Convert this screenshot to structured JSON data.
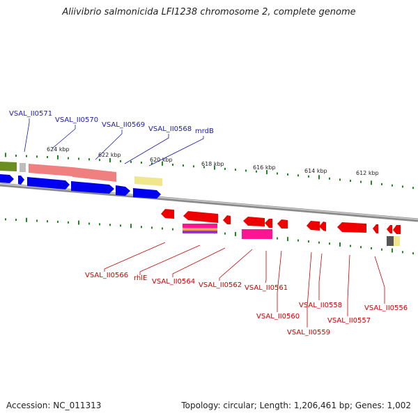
{
  "title": "Aliivibrio salmonicida LFI1238 chromosome 2, complete genome",
  "accession": "Accession: NC_011313",
  "summary": "Topology: circular; Length: 1,206,461 bp; Genes: 1,002",
  "ticks": [
    {
      "label": "624 kbp"
    },
    {
      "label": "622 kbp"
    },
    {
      "label": "620 kbp"
    },
    {
      "label": "618 kbp"
    },
    {
      "label": "616 kbp"
    },
    {
      "label": "614 kbp"
    },
    {
      "label": "612 kbp"
    }
  ],
  "top_genes": [
    {
      "label": "VSAL_II0571"
    },
    {
      "label": "VSAL_II0570"
    },
    {
      "label": "VSAL_II0569"
    },
    {
      "label": "VSAL_II0568"
    },
    {
      "label": "mrdB"
    }
  ],
  "bottom_genes": [
    {
      "label": "VSAL_II0566"
    },
    {
      "label": "rhlE"
    },
    {
      "label": "VSAL_II0564"
    },
    {
      "label": "VSAL_II0562"
    },
    {
      "label": "VSAL_II0561"
    },
    {
      "label": "VSAL_II0560"
    },
    {
      "label": "VSAL_II0559"
    },
    {
      "label": "VSAL_II0558"
    },
    {
      "label": "VSAL_II0557"
    },
    {
      "label": "VSAL_II0556"
    }
  ],
  "colors": {
    "forward": "#0000ee",
    "reverse": "#ee0000",
    "backbone": "#8c8c8c",
    "tick": "#1e8a1e",
    "label_blue": "#1a1ab0",
    "label_red": "#cc0000",
    "olive": "#6b8e23",
    "salmon": "#f08080",
    "khaki": "#f0e68c",
    "magenta": "#ff1493",
    "gray": "#666666"
  }
}
